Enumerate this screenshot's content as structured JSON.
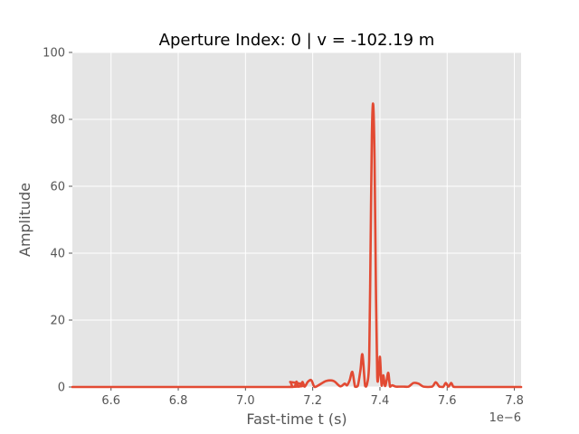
{
  "chart_data": {
    "type": "line",
    "title": "Aperture Index: 0  |  v = -102.19 m",
    "xlabel": "Fast-time t (s)",
    "ylabel": "Amplitude",
    "x_offset_label": "1e−6",
    "xlim": [
      6.485,
      7.82
    ],
    "ylim": [
      0,
      100
    ],
    "x_ticks": [
      6.6,
      6.8,
      7.0,
      7.2,
      7.4,
      7.6,
      7.8
    ],
    "x_tick_labels": [
      "6.6",
      "6.8",
      "7.0",
      "7.2",
      "7.4",
      "7.6",
      "7.8"
    ],
    "y_ticks": [
      0,
      20,
      40,
      60,
      80,
      100
    ],
    "y_tick_labels": [
      "0",
      "20",
      "40",
      "60",
      "80",
      "100"
    ],
    "grid": true,
    "style": "ggplot",
    "colors": {
      "line": "#E24A33",
      "axes_bg": "#E5E5E5",
      "grid": "#FFFFFF",
      "text": "#555555",
      "title": "#000000"
    },
    "series": [
      {
        "x": [
          6.485,
          7.125,
          7.133,
          7.14,
          7.147,
          7.152,
          7.158,
          7.164,
          7.17,
          7.176,
          7.186,
          7.196,
          7.206,
          7.222,
          7.24,
          7.262,
          7.282,
          7.295,
          7.302,
          7.31,
          7.318,
          7.326,
          7.334,
          7.342,
          7.348,
          7.356,
          7.362,
          7.368,
          7.372,
          7.376,
          7.38,
          7.384,
          7.388,
          7.392,
          7.396,
          7.4,
          7.405,
          7.41,
          7.415,
          7.42,
          7.425,
          7.43,
          7.436,
          7.442,
          7.448,
          7.456,
          7.47,
          7.485,
          7.5,
          7.515,
          7.53,
          7.555,
          7.566,
          7.577,
          7.588,
          7.596,
          7.604,
          7.612,
          7.618,
          7.624,
          7.63,
          7.64,
          7.82
        ],
        "y": [
          0,
          0,
          1.5,
          0,
          0.2,
          1.6,
          0.1,
          0.5,
          1.5,
          0.1,
          1.6,
          2.0,
          0,
          0.8,
          1.8,
          1.8,
          0.2,
          1.0,
          0.5,
          2.0,
          4.5,
          0.1,
          0.3,
          5.0,
          9.7,
          0.3,
          1.0,
          8.0,
          40,
          75,
          84.5,
          68,
          30,
          3.0,
          3.5,
          9.0,
          0.4,
          3.5,
          0.3,
          2.0,
          4.2,
          0.1,
          0.5,
          0.3,
          0.1,
          0.1,
          0.1,
          0.1,
          1.2,
          1.0,
          0.1,
          0.1,
          1.4,
          0.1,
          0,
          1.2,
          0.1,
          1.2,
          0.1,
          0,
          0,
          0,
          0
        ]
      }
    ]
  }
}
